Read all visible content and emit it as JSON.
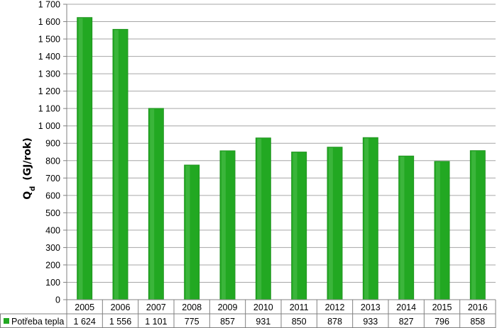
{
  "chart_data": {
    "type": "bar",
    "categories": [
      "2005",
      "2006",
      "2007",
      "2008",
      "2009",
      "2010",
      "2011",
      "2012",
      "2013",
      "2014",
      "2015",
      "2016"
    ],
    "series": [
      {
        "name": "Potřeba tepla",
        "values": [
          1624,
          1556,
          1101,
          775,
          857,
          931,
          850,
          878,
          933,
          827,
          796,
          858
        ],
        "value_labels": [
          "1 624",
          "1 556",
          "1 101",
          "775",
          "857",
          "931",
          "850",
          "878",
          "933",
          "827",
          "796",
          "858"
        ],
        "color": "#22a822"
      }
    ],
    "ylabel_main": "Q",
    "ylabel_sub": "d",
    "ylabel_rest": "(GJ/rok)",
    "ylim": [
      0,
      1700
    ],
    "y_ticks": [
      0,
      100,
      200,
      300,
      400,
      500,
      600,
      700,
      800,
      900,
      1000,
      1100,
      1200,
      1300,
      1400,
      1500,
      1600,
      1700
    ],
    "y_tick_labels": [
      "0",
      "100",
      "200",
      "300",
      "400",
      "500",
      "600",
      "700",
      "800",
      "900",
      "1 000",
      "1 100",
      "1 200",
      "1 300",
      "1 400",
      "1 500",
      "1 600",
      "1 700"
    ],
    "grid": true,
    "data_table": true,
    "gridline_color": "#a6a6a6"
  }
}
